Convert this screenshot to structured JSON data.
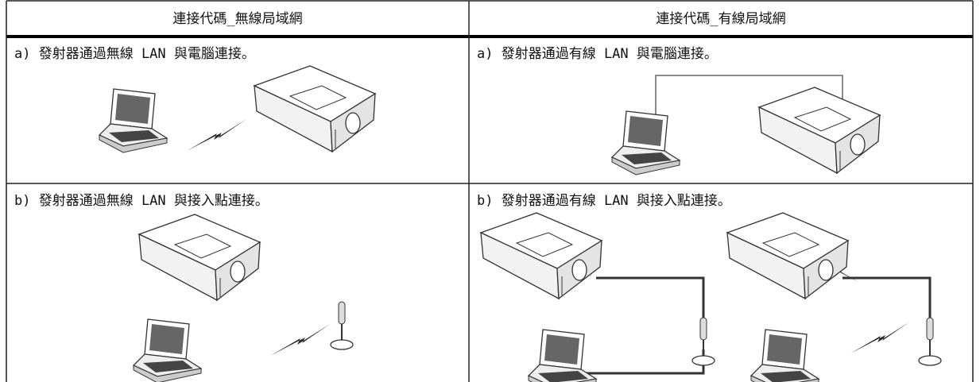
{
  "table": {
    "headers": [
      "連接代碼_無線局域網",
      "連接代碼_有線局域網"
    ],
    "rows": [
      [
        "a) 發射器通過無線 LAN 與電腦連接。",
        "a) 發射器通過有線 LAN 與電腦連接。"
      ],
      [
        "b) 發射器通過無線 LAN 與接入點連接。",
        "b) 發射器通過有線 LAN 與接入點連接。"
      ]
    ]
  }
}
